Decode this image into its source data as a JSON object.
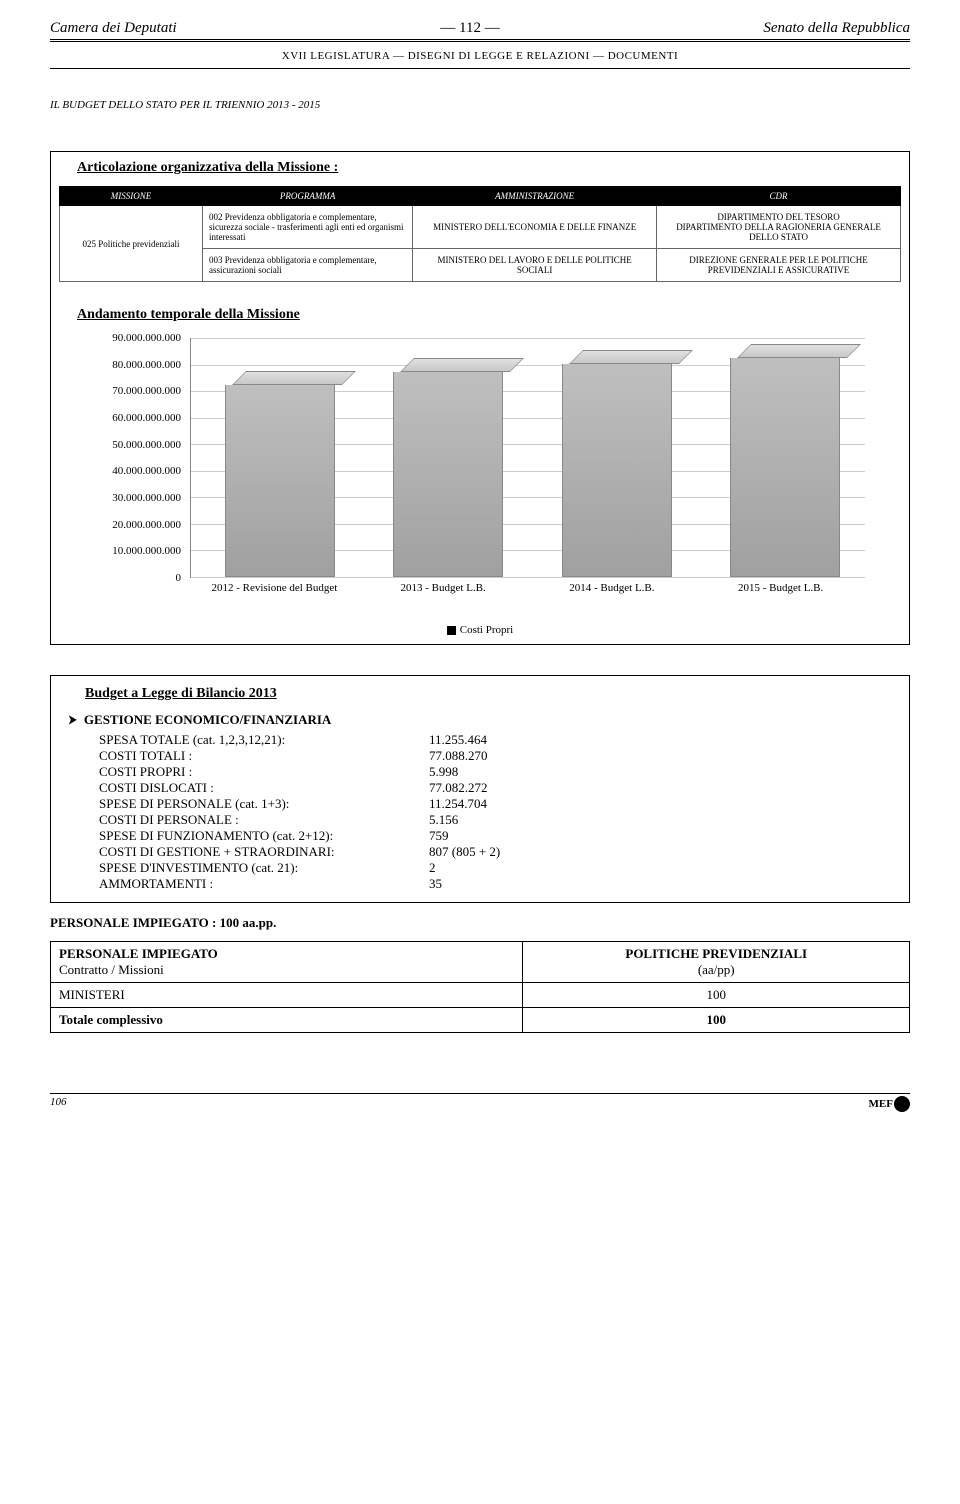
{
  "header": {
    "left": "Camera dei Deputati",
    "center": "—  112  —",
    "right": "Senato della Repubblica",
    "legislature": "XVII LEGISLATURA — DISEGNI DI LEGGE E RELAZIONI — DOCUMENTI"
  },
  "subtitle": "IL BUDGET DELLO STATO PER IL TRIENNIO 2013 - 2015",
  "mission": {
    "title": "Articolazione organizzativa della Missione :",
    "columns": [
      "MISSIONE",
      "PROGRAMMA",
      "AMMINISTRAZIONE",
      "CDR"
    ],
    "rows": [
      {
        "missione": "025 Politiche previdenziali",
        "programma": "002 Previdenza obbligatoria e complementare, sicurezza sociale - trasferimenti agli enti ed organismi interessati",
        "amministrazione": "MINISTERO DELL'ECONOMIA E DELLE FINANZE",
        "cdr": "DIPARTIMENTO DEL TESORO\nDIPARTIMENTO DELLA RAGIONERIA GENERALE DELLO STATO"
      },
      {
        "missione": "",
        "programma": "003 Previdenza obbligatoria e complementare, assicurazioni sociali",
        "amministrazione": "MINISTERO DEL LAVORO E DELLE POLITICHE SOCIALI",
        "cdr": "DIREZIONE GENERALE PER LE POLITICHE PREVIDENZIALI E ASSICURATIVE"
      }
    ]
  },
  "chart": {
    "title": "Andamento temporale della Missione",
    "y_max": 90000000000,
    "y_step": 10000000000,
    "y_ticks": [
      "90.000.000.000",
      "80.000.000.000",
      "70.000.000.000",
      "60.000.000.000",
      "50.000.000.000",
      "40.000.000.000",
      "30.000.000.000",
      "20.000.000.000",
      "10.000.000.000",
      "0"
    ],
    "x_labels": [
      "2012 - Revisione del Budget",
      "2013 - Budget L.B.",
      "2014 - Budget L.B.",
      "2015 - Budget L.B."
    ],
    "values": [
      72000000000,
      77000000000,
      80000000000,
      82000000000
    ],
    "bar_color": "#b0b0b0",
    "grid_color": "#cccccc",
    "legend": "Costi Propri"
  },
  "budget": {
    "title": "Budget a Legge di Bilancio 2013",
    "section": "GESTIONE ECONOMICO/FINANZIARIA",
    "rows": [
      {
        "label": "SPESA TOTALE (cat. 1,2,3,12,21):",
        "value": "11.255.464"
      },
      {
        "label": "COSTI TOTALI :",
        "value": "77.088.270"
      },
      {
        "label": "COSTI PROPRI :",
        "value": "5.998"
      },
      {
        "label": "COSTI DISLOCATI :",
        "value": "77.082.272"
      },
      {
        "label": "SPESE DI PERSONALE (cat. 1+3):",
        "value": "11.254.704"
      },
      {
        "label": "COSTI DI PERSONALE :",
        "value": "5.156"
      },
      {
        "label": "SPESE DI FUNZIONAMENTO (cat. 2+12):",
        "value": "759"
      },
      {
        "label": "COSTI DI GESTIONE  + STRAORDINARI:",
        "value": "807 (805 + 2)"
      },
      {
        "label": "SPESE D'INVESTIMENTO (cat. 21):",
        "value": "2"
      },
      {
        "label": "AMMORTAMENTI :",
        "value": "35"
      }
    ]
  },
  "personale_note": "PERSONALE IMPIEGATO : 100 aa.pp.",
  "pers_table": {
    "head_left": "PERSONALE IMPIEGATO",
    "head_left_sub": "Contratto / Missioni",
    "head_right": "POLITICHE PREVIDENZIALI",
    "head_right_sub": "(aa/pp)",
    "rows": [
      {
        "label": "MINISTERI",
        "value": "100"
      },
      {
        "label": "Totale complessivo",
        "value": "100"
      }
    ]
  },
  "footer": {
    "page": "106",
    "badge": "MEF"
  }
}
